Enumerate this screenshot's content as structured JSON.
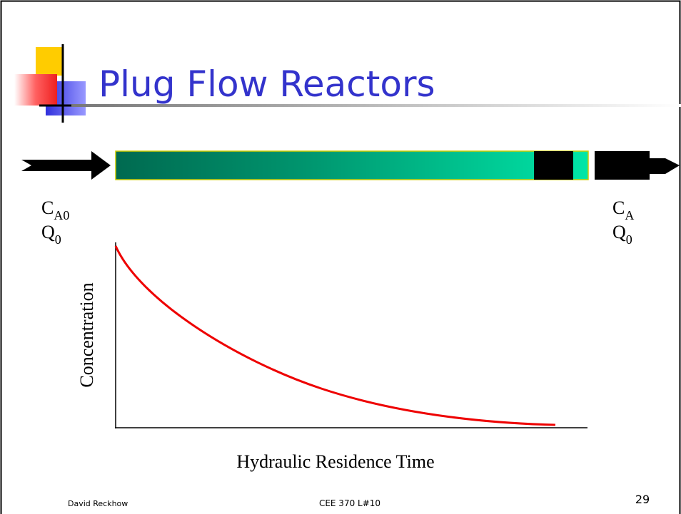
{
  "title": "Plug Flow Reactors",
  "inlet": {
    "c": "C",
    "c_sub": "A0",
    "q": "Q",
    "q_sub": "0"
  },
  "outlet": {
    "c": "C",
    "c_sub": "A",
    "q": "Q",
    "q_sub": "0"
  },
  "graph": {
    "y_label": "Concentration",
    "x_label": "Hydraulic Residence Time"
  },
  "footer": {
    "author": "David Reckhow",
    "course": "CEE 370 L#10",
    "page": "29"
  }
}
